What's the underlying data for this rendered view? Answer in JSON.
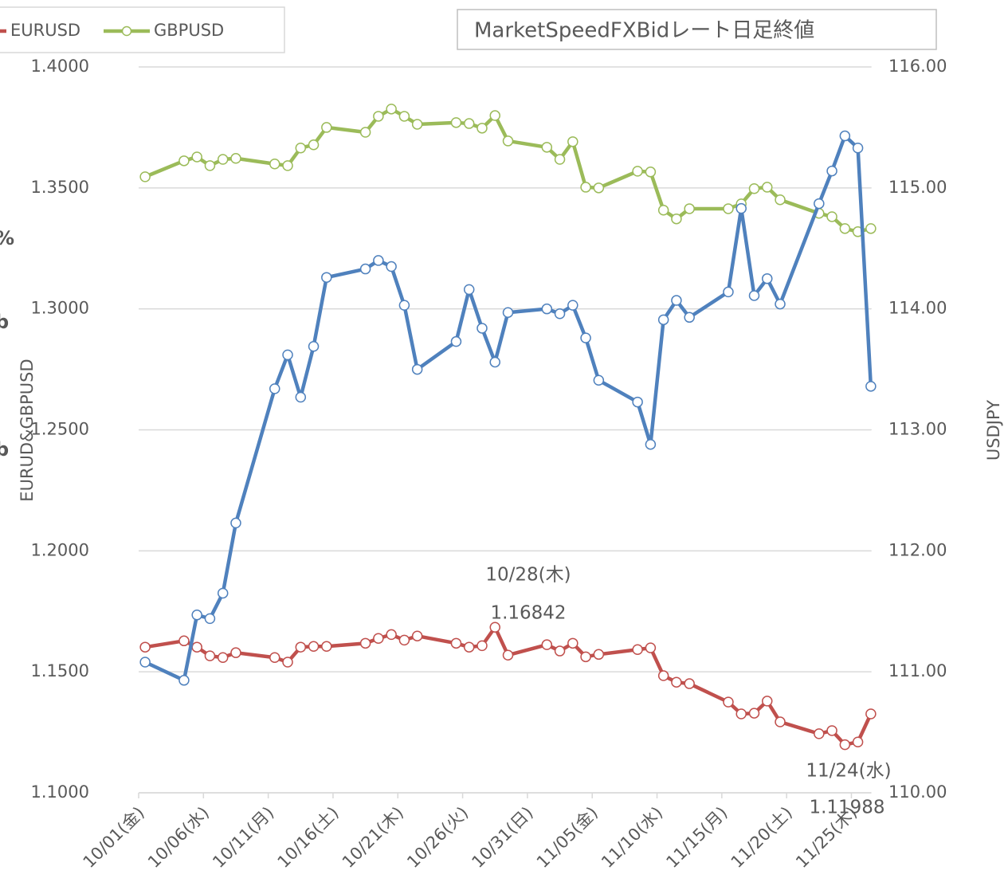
{
  "chart_data": {
    "type": "line",
    "title": "MarketSpeedFXBidレート日足終値",
    "y_label": "EURUD&GBPUSD",
    "y2_label": "USDJPY",
    "side_labels": [
      {
        "text": "%",
        "color": "#92d050"
      },
      {
        "text": "b",
        "color": "#1f3864"
      },
      {
        "text": "b",
        "color": "#ff0000"
      }
    ],
    "x": [
      "10/01",
      "10/04",
      "10/05",
      "10/06",
      "10/07",
      "10/08",
      "10/11",
      "10/12",
      "10/13",
      "10/14",
      "10/15",
      "10/18",
      "10/19",
      "10/20",
      "10/21",
      "10/22",
      "10/25",
      "10/26",
      "10/27",
      "10/28",
      "10/29",
      "11/01",
      "11/02",
      "11/03",
      "11/04",
      "11/05",
      "11/08",
      "11/09",
      "11/10",
      "11/11",
      "11/12",
      "11/15",
      "11/16",
      "11/17",
      "11/18",
      "11/19",
      "11/22",
      "11/23",
      "11/24",
      "11/25",
      "11/26"
    ],
    "xlim": [
      "10/01",
      "11/27"
    ],
    "xticks": [
      {
        "value": "10/01",
        "label": "10/01(金)"
      },
      {
        "value": "10/06",
        "label": "10/06(水)"
      },
      {
        "value": "10/11",
        "label": "10/11(月)"
      },
      {
        "value": "10/16",
        "label": "10/16(土)"
      },
      {
        "value": "10/21",
        "label": "10/21(木)"
      },
      {
        "value": "10/26",
        "label": "10/26(火)"
      },
      {
        "value": "10/31",
        "label": "10/31(日)"
      },
      {
        "value": "11/05",
        "label": "11/05(金)"
      },
      {
        "value": "11/10",
        "label": "11/10(水)"
      },
      {
        "value": "11/15",
        "label": "11/15(月)"
      },
      {
        "value": "11/20",
        "label": "11/20(土)"
      },
      {
        "value": "11/25",
        "label": "11/25(木)"
      }
    ],
    "ylim": [
      1.1,
      1.4
    ],
    "yticks": [
      {
        "value": 1.1,
        "label": "1.1000"
      },
      {
        "value": 1.15,
        "label": "1.1500"
      },
      {
        "value": 1.2,
        "label": "1.2000"
      },
      {
        "value": 1.25,
        "label": "1.2500"
      },
      {
        "value": 1.3,
        "label": "1.3000"
      },
      {
        "value": 1.35,
        "label": "1.3500"
      },
      {
        "value": 1.4,
        "label": "1.4000"
      }
    ],
    "y2lim": [
      110,
      116
    ],
    "y2ticks": [
      {
        "value": 110,
        "label": "110.00"
      },
      {
        "value": 111,
        "label": "111.00"
      },
      {
        "value": 112,
        "label": "112.00"
      },
      {
        "value": 113,
        "label": "113.00"
      },
      {
        "value": 114,
        "label": "114.00"
      },
      {
        "value": 115,
        "label": "115.00"
      },
      {
        "value": 116,
        "label": "116.00"
      }
    ],
    "grid": true,
    "legend": "top-left",
    "series": [
      {
        "name": "USDJPY",
        "color": "#4f81bd",
        "axis": "y2",
        "values": [
          111.08,
          110.93,
          111.47,
          111.44,
          111.65,
          112.23,
          113.34,
          113.62,
          113.27,
          113.69,
          114.26,
          114.33,
          114.4,
          114.35,
          114.03,
          113.5,
          113.73,
          114.16,
          113.84,
          113.56,
          113.97,
          114.0,
          113.96,
          114.03,
          113.76,
          113.41,
          113.23,
          112.88,
          113.91,
          114.07,
          113.93,
          114.14,
          114.83,
          114.11,
          114.25,
          114.04,
          114.87,
          115.14,
          115.43,
          115.33,
          113.36
        ]
      },
      {
        "name": "EURUSD",
        "color": "#c0504d",
        "values": [
          1.1602,
          1.1628,
          1.1602,
          1.1566,
          1.1559,
          1.1579,
          1.1559,
          1.154,
          1.1602,
          1.1605,
          1.1605,
          1.1618,
          1.1638,
          1.1654,
          1.1631,
          1.1648,
          1.1618,
          1.1602,
          1.1608,
          1.16842,
          1.1569,
          1.1612,
          1.1586,
          1.1618,
          1.1562,
          1.1572,
          1.1592,
          1.1599,
          1.1484,
          1.1457,
          1.1451,
          1.1375,
          1.1326,
          1.1329,
          1.1379,
          1.1293,
          1.1244,
          1.1257,
          1.11988,
          1.121,
          1.1326
        ]
      },
      {
        "name": "GBPUSD",
        "color": "#9bbb59",
        "values": [
          1.3546,
          1.3612,
          1.3628,
          1.3592,
          1.3618,
          1.3622,
          1.3599,
          1.3592,
          1.3665,
          1.3678,
          1.375,
          1.373,
          1.3796,
          1.3826,
          1.3796,
          1.3763,
          1.377,
          1.3766,
          1.3747,
          1.3799,
          1.3694,
          1.3668,
          1.3618,
          1.3691,
          1.3503,
          1.35,
          1.3569,
          1.3566,
          1.3408,
          1.3372,
          1.3414,
          1.3414,
          1.3434,
          1.3497,
          1.3503,
          1.3451,
          1.3395,
          1.3381,
          1.3332,
          1.3319,
          1.3332
        ]
      }
    ],
    "annotations": [
      {
        "date": "10/28(木)",
        "value": "1.16842",
        "color": "#ff0000"
      },
      {
        "date": "11/24(水)",
        "value": "1.11988",
        "color": "#ff0000"
      }
    ]
  }
}
